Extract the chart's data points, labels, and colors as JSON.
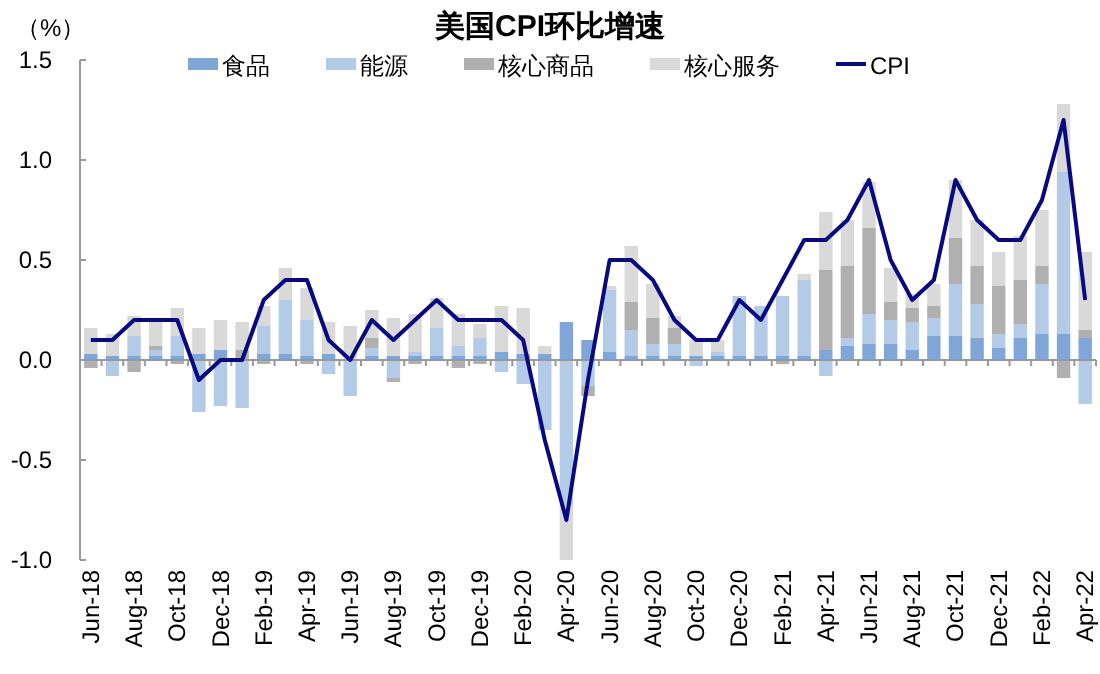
{
  "chart_data": {
    "type": "bar",
    "stacked": true,
    "title": "美国CPI环比增速",
    "ylabel": "（%）",
    "legend": "top",
    "categories": [
      "Jun-18",
      null,
      "Aug-18",
      null,
      "Oct-18",
      null,
      "Dec-18",
      null,
      "Feb-19",
      null,
      "Apr-19",
      null,
      "Jun-19",
      null,
      "Aug-19",
      null,
      "Oct-19",
      null,
      "Dec-19",
      null,
      "Feb-20",
      null,
      "Apr-20",
      null,
      "Jun-20",
      null,
      "Aug-20",
      null,
      "Oct-20",
      null,
      "Dec-20",
      null,
      "Feb-21",
      null,
      "Apr-21",
      null,
      "Jun-21",
      null,
      "Aug-21",
      null,
      "Oct-21",
      null,
      "Dec-21",
      null,
      "Feb-22",
      null,
      "Apr-22"
    ],
    "ylim": [
      -1.0,
      1.5
    ],
    "yticks": [
      {
        "value": 1.5,
        "label": "1.5"
      },
      {
        "value": 1.0,
        "label": "1.0"
      },
      {
        "value": 0.5,
        "label": "0.5"
      },
      {
        "value": 0,
        "label": "0.0"
      },
      {
        "value": -0.5,
        "label": "-0.5"
      },
      {
        "value": -1.0,
        "label": "-1.0"
      }
    ],
    "series": [
      {
        "name": "食品",
        "color": "#7fa6d6",
        "values": [
          0.03,
          0.02,
          0.02,
          0.02,
          0.02,
          0.03,
          0.05,
          null,
          0.03,
          0.03,
          0.02,
          0.03,
          null,
          0.02,
          0.02,
          0.02,
          0.02,
          0.02,
          0.02,
          0.04,
          0.03,
          0.03,
          0.19,
          0.1,
          0.04,
          0.02,
          0.02,
          0.02,
          0.02,
          0.02,
          0.02,
          0.02,
          0.02,
          0.02,
          0.05,
          0.07,
          0.08,
          0.08,
          0.05,
          0.12,
          0.12,
          0.11,
          0.06,
          0.11,
          0.13,
          0.13,
          0.11
        ]
      },
      {
        "name": "能源",
        "color": "#b4cbe8",
        "values": [
          0.0,
          -0.08,
          0.1,
          0.03,
          0.1,
          -0.26,
          -0.23,
          -0.24,
          0.14,
          0.27,
          0.18,
          -0.07,
          -0.18,
          0.04,
          -0.09,
          0.02,
          0.14,
          0.05,
          0.09,
          -0.06,
          -0.12,
          -0.35,
          -0.73,
          -0.13,
          0.31,
          0.13,
          0.06,
          0.06,
          -0.03,
          0.02,
          0.3,
          0.25,
          0.3,
          0.38,
          -0.08,
          0.04,
          0.15,
          0.12,
          0.14,
          0.09,
          0.26,
          0.17,
          0.07,
          0.07,
          0.25,
          0.81,
          -0.22
        ]
      },
      {
        "name": "核心商品",
        "color": "#b0b0b0",
        "values": [
          -0.04,
          0.0,
          -0.06,
          0.02,
          -0.02,
          0.0,
          0.0,
          0.05,
          -0.02,
          0.0,
          -0.02,
          0.0,
          0.0,
          0.05,
          -0.02,
          -0.02,
          0.0,
          -0.04,
          -0.02,
          0.0,
          0.0,
          0.0,
          null,
          -0.05,
          0.0,
          0.14,
          0.13,
          0.08,
          0.0,
          0.0,
          0.0,
          0.0,
          -0.02,
          0.0,
          0.4,
          0.36,
          0.43,
          0.09,
          0.07,
          0.06,
          0.23,
          0.19,
          0.24,
          0.22,
          0.09,
          -0.09,
          0.04
        ]
      },
      {
        "name": "核心服务",
        "color": "#d9d9d9",
        "values": [
          0.13,
          0.11,
          0.1,
          0.12,
          0.14,
          0.13,
          0.15,
          0.14,
          0.1,
          0.16,
          0.16,
          0.16,
          0.17,
          0.14,
          0.19,
          0.19,
          0.15,
          0.16,
          0.07,
          0.23,
          0.23,
          0.04,
          -0.27,
          0.0,
          0.02,
          0.28,
          0.17,
          0.06,
          0.08,
          0.06,
          0.0,
          0.0,
          0.0,
          0.03,
          0.29,
          0.23,
          0.23,
          0.17,
          0.07,
          0.11,
          0.29,
          0.23,
          0.17,
          0.22,
          0.28,
          0.34,
          0.39
        ]
      },
      {
        "name": "CPI",
        "type": "line",
        "color": "#0a0a80",
        "line_style": "solid",
        "values": [
          0.1,
          0.1,
          0.2,
          0.2,
          0.2,
          -0.1,
          0.0,
          0.0,
          0.3,
          0.4,
          0.4,
          0.1,
          0.0,
          0.2,
          0.1,
          0.2,
          0.3,
          0.2,
          0.2,
          0.2,
          0.1,
          -0.4,
          -0.8,
          -0.1,
          0.5,
          0.5,
          0.4,
          0.2,
          0.1,
          0.1,
          0.3,
          0.2,
          0.4,
          0.6,
          0.6,
          0.7,
          0.9,
          0.5,
          0.3,
          0.4,
          0.9,
          0.7,
          0.6,
          0.6,
          0.8,
          1.2,
          0.3
        ]
      }
    ]
  }
}
